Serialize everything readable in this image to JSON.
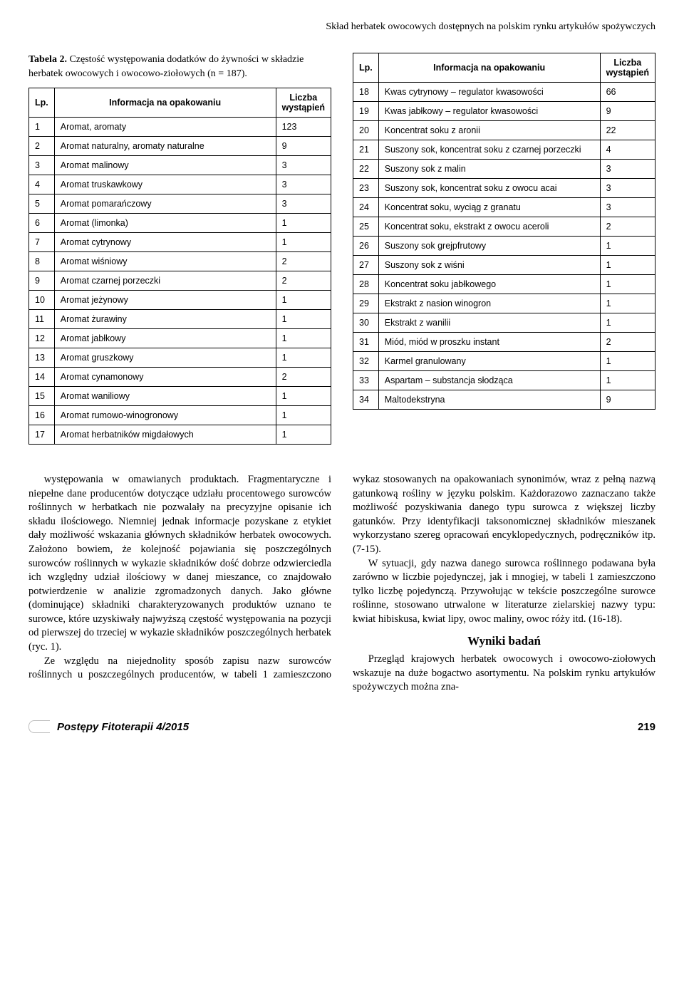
{
  "running_head": "Skład herbatek owocowych dostępnych na polskim rynku artykułów spożywczych",
  "caption_label": "Tabela 2.",
  "caption_text": " Częstość występowania dodatków do żywności w składzie herbatek owocowych i owocowo-ziołowych (n = 187).",
  "headers": {
    "lp": "Lp.",
    "info": "Informacja na opakowaniu",
    "count": "Liczba wystąpień"
  },
  "left_rows": [
    {
      "lp": "1",
      "info": "Aromat, aromaty",
      "cnt": "123"
    },
    {
      "lp": "2",
      "info": "Aromat naturalny, aromaty naturalne",
      "cnt": "9"
    },
    {
      "lp": "3",
      "info": "Aromat malinowy",
      "cnt": "3"
    },
    {
      "lp": "4",
      "info": "Aromat truskawkowy",
      "cnt": "3"
    },
    {
      "lp": "5",
      "info": "Aromat pomarańczowy",
      "cnt": "3"
    },
    {
      "lp": "6",
      "info": "Aromat (limonka)",
      "cnt": "1"
    },
    {
      "lp": "7",
      "info": "Aromat cytrynowy",
      "cnt": "1"
    },
    {
      "lp": "8",
      "info": "Aromat wiśniowy",
      "cnt": "2"
    },
    {
      "lp": "9",
      "info": "Aromat czarnej porzeczki",
      "cnt": "2"
    },
    {
      "lp": "10",
      "info": "Aromat jeżynowy",
      "cnt": "1"
    },
    {
      "lp": "11",
      "info": "Aromat żurawiny",
      "cnt": "1"
    },
    {
      "lp": "12",
      "info": "Aromat jabłkowy",
      "cnt": "1"
    },
    {
      "lp": "13",
      "info": "Aromat gruszkowy",
      "cnt": "1"
    },
    {
      "lp": "14",
      "info": "Aromat cynamonowy",
      "cnt": "2"
    },
    {
      "lp": "15",
      "info": "Aromat waniliowy",
      "cnt": "1"
    },
    {
      "lp": "16",
      "info": "Aromat rumowo-winogronowy",
      "cnt": "1"
    },
    {
      "lp": "17",
      "info": "Aromat herbatników migdałowych",
      "cnt": "1"
    }
  ],
  "right_rows": [
    {
      "lp": "18",
      "info": "Kwas cytrynowy – regulator kwasowości",
      "cnt": "66"
    },
    {
      "lp": "19",
      "info": "Kwas jabłkowy – regulator kwasowości",
      "cnt": "9"
    },
    {
      "lp": "20",
      "info": "Koncentrat soku z aronii",
      "cnt": "22"
    },
    {
      "lp": "21",
      "info": "Suszony sok, koncentrat soku z czarnej porzeczki",
      "cnt": "4"
    },
    {
      "lp": "22",
      "info": "Suszony sok z malin",
      "cnt": "3"
    },
    {
      "lp": "23",
      "info": "Suszony sok, koncentrat soku z owocu acai",
      "cnt": "3"
    },
    {
      "lp": "24",
      "info": "Koncentrat soku, wyciąg z granatu",
      "cnt": "3"
    },
    {
      "lp": "25",
      "info": "Koncentrat soku, ekstrakt z owocu aceroli",
      "cnt": "2"
    },
    {
      "lp": "26",
      "info": "Suszony sok grejpfrutowy",
      "cnt": "1"
    },
    {
      "lp": "27",
      "info": "Suszony sok z wiśni",
      "cnt": "1"
    },
    {
      "lp": "28",
      "info": "Koncentrat soku jabłkowego",
      "cnt": "1"
    },
    {
      "lp": "29",
      "info": "Ekstrakt z nasion winogron",
      "cnt": "1"
    },
    {
      "lp": "30",
      "info": "Ekstrakt z wanilii",
      "cnt": "1"
    },
    {
      "lp": "31",
      "info": "Miód, miód w proszku instant",
      "cnt": "2"
    },
    {
      "lp": "32",
      "info": "Karmel granulowany",
      "cnt": "1"
    },
    {
      "lp": "33",
      "info": "Aspartam – substancja słodząca",
      "cnt": "1"
    },
    {
      "lp": "34",
      "info": "Maltodekstryna",
      "cnt": "9"
    }
  ],
  "body": {
    "p1": "występowania w omawianych produktach. Fragmentaryczne i niepełne dane producentów dotyczące udziału procentowego surowców roślinnych w herbatkach nie pozwalały na precyzyjne opisanie ich składu ilościowego. Niemniej jednak informacje pozyskane z etykiet dały możliwość wskazania głównych składników herbatek owocowych. Założono bowiem, że kolejność pojawiania się poszczególnych surowców roślinnych w wykazie składników dość dobrze odzwierciedla ich względny udział ilościowy w danej mieszance, co znajdowało potwierdzenie w analizie zgromadzonych danych. Jako główne (dominujące) składniki charakteryzowanych produktów uznano te surowce, które uzyskiwały najwyższą częstość występowania na pozycji od pierwszej do trzeciej w wykazie składników poszczególnych herbatek (ryc. 1).",
    "p2": "Ze względu na niejednolity sposób zapisu nazw surowców roślinnych u poszczególnych producentów, w tabeli 1 zamieszczono wykaz stosowanych na opakowaniach synonimów, wraz z pełną nazwą gatunkową rośliny w języku polskim. Każdorazowo zaznaczano także możliwość pozyskiwania danego typu surowca z większej liczby gatunków. Przy identyfikacji taksonomicznej składników mieszanek wykorzystano szereg opracowań encyklopedycznych, podręczników itp. (7-15).",
    "p3": "W sytuacji, gdy nazwa danego surowca roślinnego podawana była zarówno w liczbie pojedynczej, jak i mnogiej, w tabeli 1 zamieszczono tylko liczbę pojedynczą. Przywołując w tekście poszczególne surowce roślinne, stosowano utrwalone w literaturze zielarskiej nazwy typu: kwiat hibiskusa, kwiat lipy, owoc maliny, owoc róży itd. (16-18).",
    "h_results": "Wyniki badań",
    "p4": "Przegląd krajowych herbatek owocowych i owocowo-ziołowych wskazuje na duże bogactwo asortymentu. Na polskim rynku artykułów spożywczych można zna-"
  },
  "footer": {
    "journal": "Postępy  Fitoterapii 4/2015",
    "page": "219"
  }
}
